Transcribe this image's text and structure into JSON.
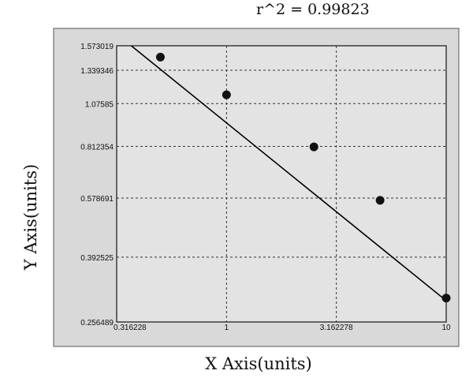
{
  "chart_data": {
    "type": "scatter",
    "subtitle": "r^2  =  0.99823",
    "xlabel": "X Axis(units)",
    "ylabel": "Y Axis(units)",
    "x_scale": "log",
    "y_scale": "log",
    "xlim": [
      0.316228,
      10
    ],
    "ylim": [
      0.256489,
      1.573019
    ],
    "x_ticks": [
      {
        "value": 0.316228,
        "label": "0.316228"
      },
      {
        "value": 1,
        "label": "1"
      },
      {
        "value": 3.162278,
        "label": "3.162278"
      },
      {
        "value": 10,
        "label": "10"
      }
    ],
    "y_ticks": [
      {
        "value": 1.573019,
        "label": "1.573019"
      },
      {
        "value": 1.339346,
        "label": "1.339346"
      },
      {
        "value": 1.07585,
        "label": "1.07585"
      },
      {
        "value": 0.812354,
        "label": "0.812354"
      },
      {
        "value": 0.578691,
        "label": "0.578691"
      },
      {
        "value": 0.392525,
        "label": "0.392525"
      },
      {
        "value": 0.256489,
        "label": "0.256489"
      }
    ],
    "grid": true,
    "series": [
      {
        "points": [
          {
            "x": 0.5,
            "y": 1.46
          },
          {
            "x": 1.0,
            "y": 1.14
          },
          {
            "x": 2.5,
            "y": 0.81
          },
          {
            "x": 5.0,
            "y": 0.57
          },
          {
            "x": 10.0,
            "y": 0.3
          }
        ]
      }
    ],
    "fit_line": {
      "x": [
        0.316228,
        10
      ],
      "y": [
        1.7,
        0.295
      ]
    },
    "colors": {
      "background": "#d9d9d9",
      "plot": "#e3e3e3",
      "marker": "#111111",
      "line": "#000000",
      "grid": "#333333"
    }
  }
}
